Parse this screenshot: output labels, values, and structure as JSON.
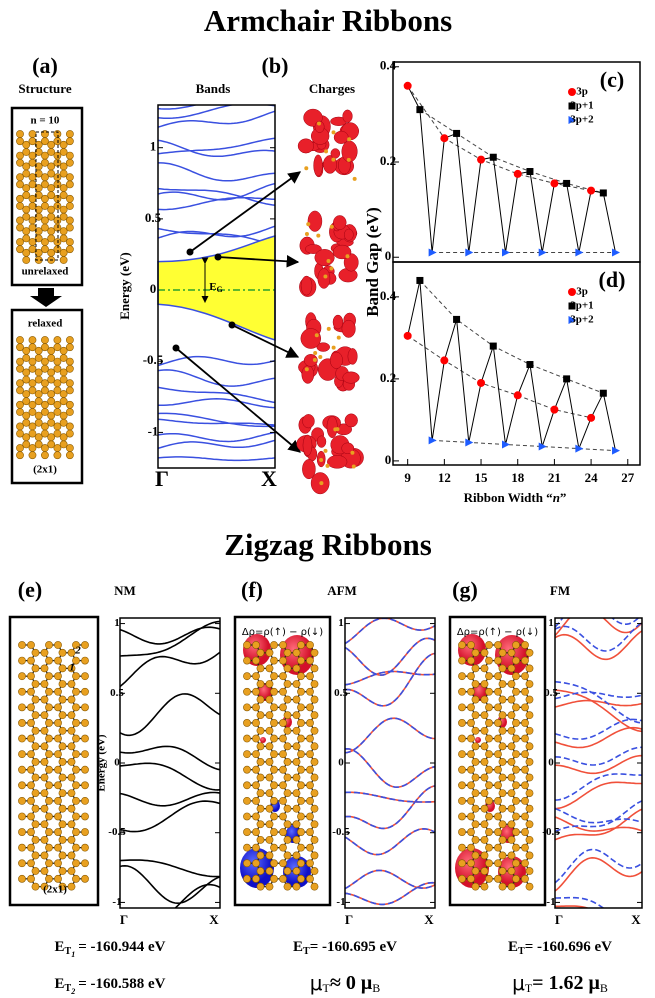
{
  "titles": [
    "Armchair Ribbons",
    "Zigzag Ribbons"
  ],
  "armchair": {
    "panel_a": "(a)",
    "panel_b": "(b)",
    "structure_heading": "Structure",
    "bands_heading": "Bands",
    "charges_heading": "Charges",
    "n_label": "n = 10",
    "unrelaxed": "unrelaxed",
    "relaxed": "relaxed",
    "cell": "(2x1)",
    "bands": {
      "ylabel": "Energy (eV)",
      "ylim": [
        -1.25,
        1.3
      ],
      "yticks": [
        -1,
        -0.5,
        0,
        0.5,
        1
      ],
      "xlabels": [
        "Γ",
        "X"
      ],
      "gap_label": [
        "E",
        "G"
      ]
    }
  },
  "chart_data": [
    {
      "type": "scatter",
      "panel": "(c)",
      "ylabel": "Band Gap (eV)",
      "xlim": [
        7.8,
        28
      ],
      "ylim": [
        -0.01,
        0.41
      ],
      "yticks": [
        0,
        0.2,
        0.4
      ],
      "series": [
        {
          "name": "3p",
          "color": "#ff0000",
          "marker": "circle",
          "x": [
            9,
            12,
            15,
            18,
            21,
            24
          ],
          "values": [
            0.36,
            0.25,
            0.205,
            0.175,
            0.155,
            0.14
          ]
        },
        {
          "name": "3p+1",
          "color": "#000000",
          "marker": "square",
          "x": [
            10,
            13,
            16,
            19,
            22,
            25
          ],
          "values": [
            0.31,
            0.26,
            0.21,
            0.18,
            0.155,
            0.135
          ]
        },
        {
          "name": "3p+2",
          "color": "#1e5cff",
          "marker": "triangle",
          "x": [
            11,
            14,
            17,
            20,
            23,
            26
          ],
          "values": [
            0.01,
            0.01,
            0.01,
            0.01,
            0.01,
            0.01
          ]
        }
      ]
    },
    {
      "type": "scatter",
      "panel": "(d)",
      "xlabel": [
        "Ribbon Width “",
        "n",
        "”"
      ],
      "xlim": [
        7.8,
        28
      ],
      "ylim": [
        -0.01,
        0.485
      ],
      "xticks": [
        9,
        12,
        15,
        18,
        21,
        24,
        27
      ],
      "yticks": [
        0,
        0.2,
        0.4
      ],
      "series": [
        {
          "name": "3p",
          "color": "#ff0000",
          "marker": "circle",
          "x": [
            9,
            12,
            15,
            18,
            21,
            24
          ],
          "values": [
            0.305,
            0.245,
            0.19,
            0.16,
            0.125,
            0.105
          ]
        },
        {
          "name": "3p+1",
          "color": "#000000",
          "marker": "square",
          "x": [
            10,
            13,
            16,
            19,
            22,
            25
          ],
          "values": [
            0.44,
            0.345,
            0.28,
            0.235,
            0.2,
            0.165
          ]
        },
        {
          "name": "3p+2",
          "color": "#1e5cff",
          "marker": "triangle",
          "x": [
            11,
            14,
            17,
            20,
            23,
            26
          ],
          "values": [
            0.05,
            0.045,
            0.04,
            0.035,
            0.03,
            0.025
          ]
        }
      ]
    }
  ],
  "zigzag": [
    {
      "label": "(e)",
      "state": "NM",
      "atom_labels": [
        "2",
        "1"
      ],
      "cell": "(2x1)",
      "bands": {
        "ylabel": "Energy (eV)",
        "ylim": [
          -1.04,
          1.04
        ],
        "yticks": [
          -1,
          -0.5,
          0,
          0.5,
          1
        ],
        "xlabels": [
          "Γ",
          "X"
        ]
      },
      "energies": [
        [
          "E",
          "T",
          "1",
          "= -160.944 eV"
        ],
        [
          "E",
          "T",
          "2",
          "= -160.588 eV"
        ]
      ]
    },
    {
      "label": "(f)",
      "state": "AFM",
      "delta_rho": "Δρ=ρ(↑) − ρ(↓)",
      "bands": {
        "ylim": [
          -1.04,
          1.04
        ],
        "yticks": [
          -1,
          -0.5,
          0,
          0.5,
          1
        ],
        "xlabels": [
          "Γ",
          "X"
        ]
      },
      "energy": [
        "E",
        "T",
        "= -160.695 eV"
      ],
      "moment": [
        "μ",
        "T",
        "≈ 0 μ",
        "B"
      ]
    },
    {
      "label": "(g)",
      "state": "FM",
      "delta_rho": "Δρ=ρ(↑) − ρ(↓)",
      "bands": {
        "ylim": [
          -1.04,
          1.04
        ],
        "yticks": [
          -1,
          -0.5,
          0,
          0.5,
          1
        ],
        "xlabels": [
          "Γ",
          "X"
        ]
      },
      "energy": [
        "E",
        "T",
        "= -160.696 eV"
      ],
      "moment": [
        "μ",
        "T",
        "= 1.62 μ",
        "B"
      ]
    }
  ]
}
